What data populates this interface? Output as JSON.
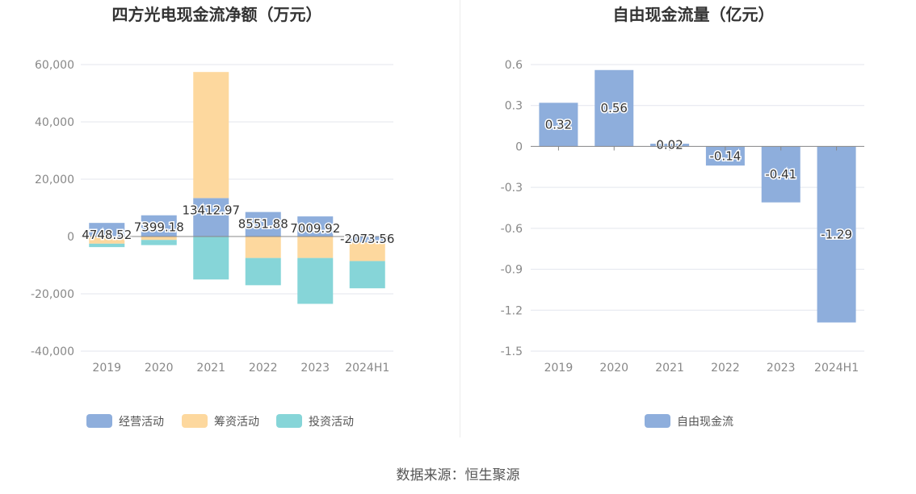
{
  "colors": {
    "operating": "#8eaedc",
    "financing": "#fdd89e",
    "investing": "#86d5d8",
    "fcf": "#8eaedc",
    "grid": "#e3e6ee",
    "axis_text": "#888888",
    "title_text": "#333333"
  },
  "footer": {
    "source": "数据来源：恒生聚源"
  },
  "chart_data": [
    {
      "type": "bar",
      "stacked": true,
      "title": "四方光电现金流净额（万元）",
      "categories": [
        "2019",
        "2020",
        "2021",
        "2022",
        "2023",
        "2024H1"
      ],
      "ylim": [
        -40000,
        60000
      ],
      "yticks": [
        60000,
        40000,
        20000,
        0,
        -20000,
        -40000
      ],
      "ytick_labels": [
        "60,000",
        "40,000",
        "20,000",
        "0",
        "-20,000",
        "-40,000"
      ],
      "grid": true,
      "legend_position": "bottom",
      "series": [
        {
          "name": "经营活动",
          "key": "operating",
          "values": [
            4748.52,
            7399.18,
            13412.97,
            8551.88,
            7009.92,
            -2073.56
          ]
        },
        {
          "name": "筹资活动",
          "key": "financing",
          "values": [
            -2500,
            -1200,
            44000,
            -7500,
            -7500,
            -6500
          ]
        },
        {
          "name": "投资活动",
          "key": "investing",
          "values": [
            -1200,
            -1800,
            -15000,
            -9500,
            -16000,
            -9500
          ]
        }
      ],
      "data_labels": [
        "4748.52",
        "7399.18",
        "13412.97",
        "8551.88",
        "7009.92",
        "-2073.56"
      ]
    },
    {
      "type": "bar",
      "title": "自由现金流量（亿元）",
      "categories": [
        "2019",
        "2020",
        "2021",
        "2022",
        "2023",
        "2024H1"
      ],
      "ylim": [
        -1.5,
        0.6
      ],
      "yticks": [
        0.6,
        0.3,
        0,
        -0.3,
        -0.6,
        -0.9,
        -1.2,
        -1.5
      ],
      "ytick_labels": [
        "0.6",
        "0.3",
        "0",
        "-0.3",
        "-0.6",
        "-0.9",
        "-1.2",
        "-1.5"
      ],
      "grid": true,
      "legend_position": "bottom",
      "series": [
        {
          "name": "自由现金流",
          "key": "fcf",
          "values": [
            0.32,
            0.56,
            0.02,
            -0.14,
            -0.41,
            -1.29
          ]
        }
      ],
      "data_labels": [
        "0.32",
        "0.56",
        "0.02",
        "-0.14",
        "-0.41",
        "-1.29"
      ]
    }
  ]
}
